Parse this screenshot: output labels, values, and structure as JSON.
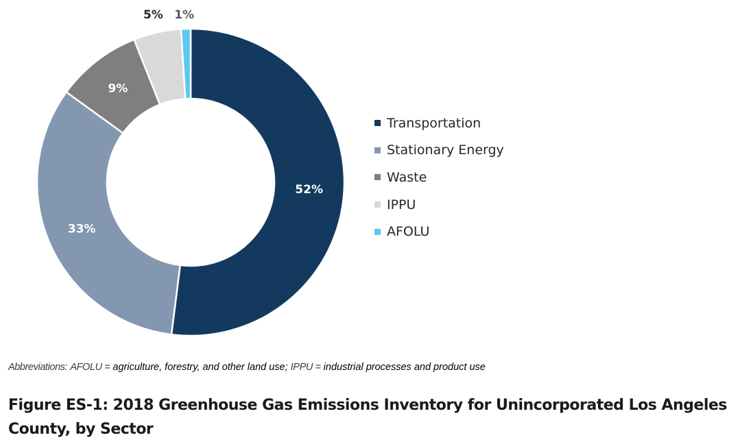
{
  "chart_data": {
    "type": "donut",
    "title": "",
    "legend_position": "right",
    "data_labels": [
      "52%",
      "33%",
      "9%",
      "5%",
      "1%"
    ],
    "slices": [
      {
        "name": "Transportation",
        "value": 52,
        "color": "#133A5E"
      },
      {
        "name": "Stationary Energy",
        "value": 33,
        "color": "#8497B0"
      },
      {
        "name": "Waste",
        "value": 9,
        "color": "#7F7F7F"
      },
      {
        "name": "IPPU",
        "value": 5,
        "color": "#D9D9D9"
      },
      {
        "name": "AFOLU",
        "value": 1,
        "color": "#5BC8EE"
      }
    ]
  },
  "abbreviations": {
    "lead": "Abbreviations:",
    "afolu_key": "AFOLU =",
    "afolu_def": "agriculture, forestry, and other land use;",
    "ippu_key": "IPPU =",
    "ippu_def": "industrial processes and product use"
  },
  "figure_title": "Figure ES-1: 2018 Greenhouse Gas Emissions Inventory for Unincorporated Los Angeles County, by Sector"
}
